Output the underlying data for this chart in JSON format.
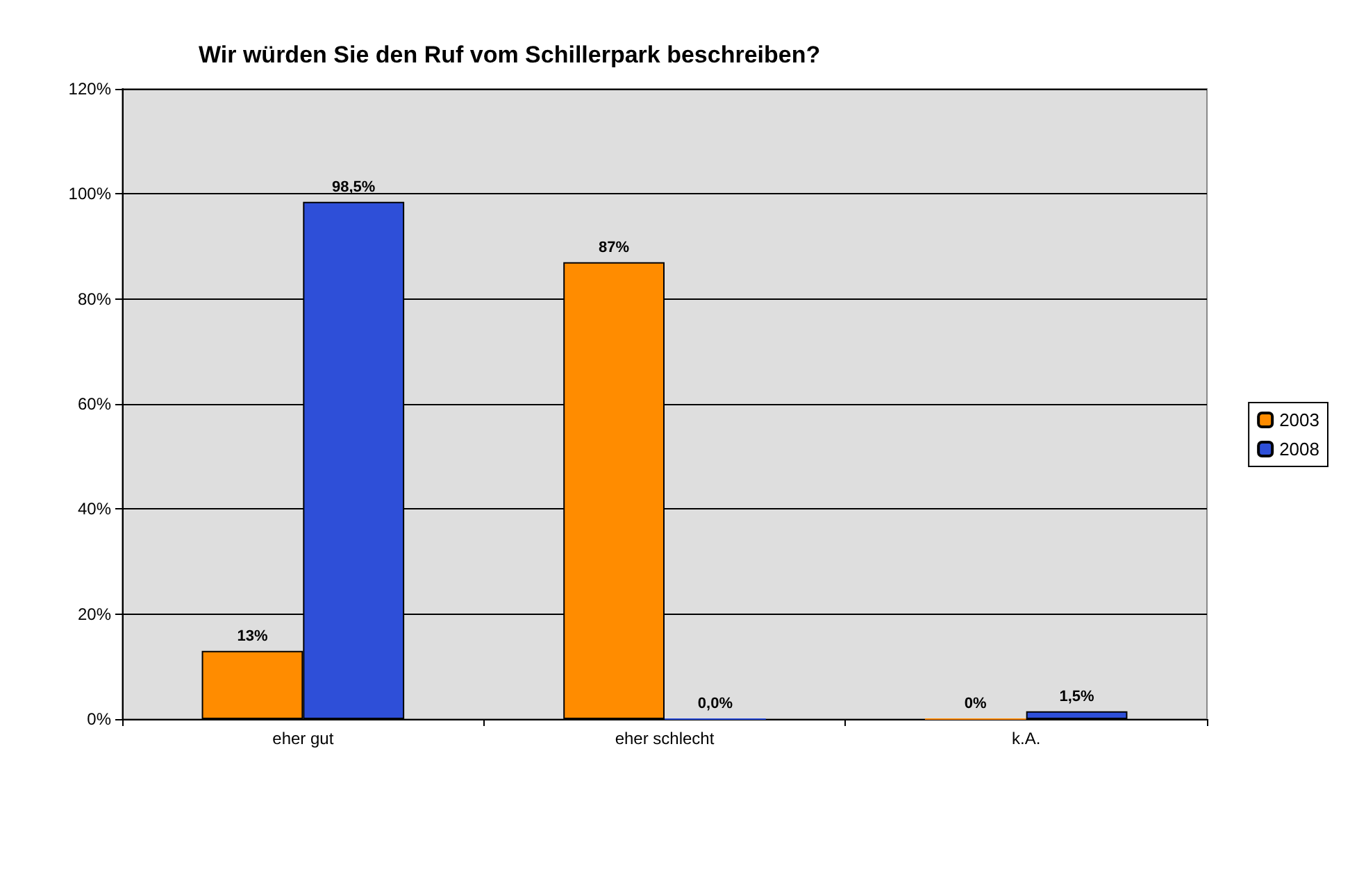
{
  "chart_data": {
    "type": "bar",
    "title": "Wir würden Sie den Ruf vom Schillerpark beschreiben?",
    "categories": [
      "eher gut",
      "eher schlecht",
      "k.A."
    ],
    "series": [
      {
        "name": "2003",
        "color": "#ff8c00",
        "values": [
          13,
          87,
          0
        ],
        "value_labels": [
          "13%",
          "87%",
          "0%"
        ]
      },
      {
        "name": "2008",
        "color": "#2e4fd8",
        "values": [
          98.5,
          0,
          1.5
        ],
        "value_labels": [
          "98,5%",
          "0,0%",
          "1,5%"
        ]
      }
    ],
    "ylim": [
      0,
      120
    ],
    "yticks": [
      {
        "value": 0,
        "label": "0%"
      },
      {
        "value": 20,
        "label": "20%"
      },
      {
        "value": 40,
        "label": "40%"
      },
      {
        "value": 60,
        "label": "60%"
      },
      {
        "value": 80,
        "label": "80%"
      },
      {
        "value": 100,
        "label": "100%"
      },
      {
        "value": 120,
        "label": "120%"
      }
    ],
    "grid": "y",
    "legend": "right"
  }
}
